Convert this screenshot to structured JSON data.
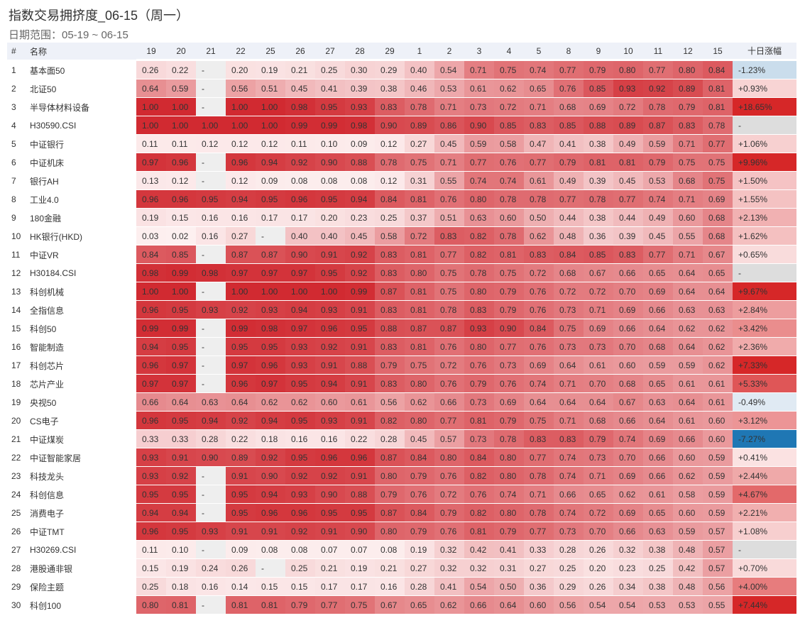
{
  "header": {
    "title": "指数交易拥挤度_06-15（周一）",
    "subtitle": "日期范围：05-19 ~ 06-15"
  },
  "table": {
    "columns": {
      "id": "#",
      "name": "名称",
      "dates": [
        "19",
        "20",
        "21",
        "22",
        "25",
        "26",
        "27",
        "28",
        "29",
        "1",
        "2",
        "3",
        "4",
        "5",
        "8",
        "9",
        "10",
        "11",
        "12",
        "15"
      ],
      "change": "十日涨幅"
    },
    "rows": [
      {
        "id": "1",
        "name": "基本面50",
        "values": [
          "0.26",
          "0.22",
          "-",
          "0.20",
          "0.19",
          "0.21",
          "0.25",
          "0.30",
          "0.29",
          "0.40",
          "0.54",
          "0.71",
          "0.75",
          "0.74",
          "0.77",
          "0.79",
          "0.80",
          "0.77",
          "0.80",
          "0.84"
        ],
        "change": "-1.23%"
      },
      {
        "id": "2",
        "name": "北证50",
        "values": [
          "0.64",
          "0.59",
          "-",
          "0.56",
          "0.51",
          "0.45",
          "0.41",
          "0.39",
          "0.38",
          "0.46",
          "0.53",
          "0.61",
          "0.62",
          "0.65",
          "0.76",
          "0.85",
          "0.93",
          "0.92",
          "0.89",
          "0.81"
        ],
        "change": "+0.93%"
      },
      {
        "id": "3",
        "name": "半导体材料设备",
        "values": [
          "1.00",
          "1.00",
          "-",
          "1.00",
          "1.00",
          "0.98",
          "0.95",
          "0.93",
          "0.83",
          "0.78",
          "0.71",
          "0.73",
          "0.72",
          "0.71",
          "0.68",
          "0.69",
          "0.72",
          "0.78",
          "0.79",
          "0.81"
        ],
        "change": "+18.65%"
      },
      {
        "id": "4",
        "name": "H30590.CSI",
        "values": [
          "1.00",
          "1.00",
          "1.00",
          "1.00",
          "1.00",
          "0.99",
          "0.99",
          "0.98",
          "0.90",
          "0.89",
          "0.86",
          "0.90",
          "0.85",
          "0.83",
          "0.85",
          "0.88",
          "0.89",
          "0.87",
          "0.83",
          "0.78"
        ],
        "change": "-"
      },
      {
        "id": "5",
        "name": "中证银行",
        "values": [
          "0.11",
          "0.11",
          "0.12",
          "0.12",
          "0.12",
          "0.11",
          "0.10",
          "0.09",
          "0.12",
          "0.27",
          "0.45",
          "0.59",
          "0.58",
          "0.47",
          "0.41",
          "0.38",
          "0.49",
          "0.59",
          "0.71",
          "0.77"
        ],
        "change": "+1.06%"
      },
      {
        "id": "6",
        "name": "中证机床",
        "values": [
          "0.97",
          "0.96",
          "-",
          "0.96",
          "0.94",
          "0.92",
          "0.90",
          "0.88",
          "0.78",
          "0.75",
          "0.71",
          "0.77",
          "0.76",
          "0.77",
          "0.79",
          "0.81",
          "0.81",
          "0.79",
          "0.75",
          "0.75"
        ],
        "change": "+9.96%"
      },
      {
        "id": "7",
        "name": "银行AH",
        "values": [
          "0.13",
          "0.12",
          "-",
          "0.12",
          "0.09",
          "0.08",
          "0.08",
          "0.08",
          "0.12",
          "0.31",
          "0.55",
          "0.74",
          "0.74",
          "0.61",
          "0.49",
          "0.39",
          "0.45",
          "0.53",
          "0.68",
          "0.75"
        ],
        "change": "+1.50%"
      },
      {
        "id": "8",
        "name": "工业4.0",
        "values": [
          "0.96",
          "0.96",
          "0.95",
          "0.94",
          "0.95",
          "0.96",
          "0.95",
          "0.94",
          "0.84",
          "0.81",
          "0.76",
          "0.80",
          "0.78",
          "0.78",
          "0.77",
          "0.78",
          "0.77",
          "0.74",
          "0.71",
          "0.69"
        ],
        "change": "+1.55%"
      },
      {
        "id": "9",
        "name": "180金融",
        "values": [
          "0.19",
          "0.15",
          "0.16",
          "0.16",
          "0.17",
          "0.17",
          "0.20",
          "0.23",
          "0.25",
          "0.37",
          "0.51",
          "0.63",
          "0.60",
          "0.50",
          "0.44",
          "0.38",
          "0.44",
          "0.49",
          "0.60",
          "0.68"
        ],
        "change": "+2.13%"
      },
      {
        "id": "10",
        "name": "HK银行(HKD)",
        "values": [
          "0.03",
          "0.02",
          "0.16",
          "0.27",
          "-",
          "0.40",
          "0.40",
          "0.45",
          "0.58",
          "0.72",
          "0.83",
          "0.82",
          "0.78",
          "0.62",
          "0.48",
          "0.36",
          "0.39",
          "0.45",
          "0.55",
          "0.68"
        ],
        "change": "+1.62%"
      },
      {
        "id": "11",
        "name": "中证VR",
        "values": [
          "0.84",
          "0.85",
          "-",
          "0.87",
          "0.87",
          "0.90",
          "0.91",
          "0.92",
          "0.83",
          "0.81",
          "0.77",
          "0.82",
          "0.81",
          "0.83",
          "0.84",
          "0.85",
          "0.83",
          "0.77",
          "0.71",
          "0.67"
        ],
        "change": "+0.65%"
      },
      {
        "id": "12",
        "name": "H30184.CSI",
        "values": [
          "0.98",
          "0.99",
          "0.98",
          "0.97",
          "0.97",
          "0.97",
          "0.95",
          "0.92",
          "0.83",
          "0.80",
          "0.75",
          "0.78",
          "0.75",
          "0.72",
          "0.68",
          "0.67",
          "0.66",
          "0.65",
          "0.64",
          "0.65"
        ],
        "change": "-"
      },
      {
        "id": "13",
        "name": "科创机械",
        "values": [
          "1.00",
          "1.00",
          "-",
          "1.00",
          "1.00",
          "1.00",
          "1.00",
          "0.99",
          "0.87",
          "0.81",
          "0.75",
          "0.80",
          "0.79",
          "0.76",
          "0.72",
          "0.72",
          "0.70",
          "0.69",
          "0.64",
          "0.64"
        ],
        "change": "+9.67%"
      },
      {
        "id": "14",
        "name": "全指信息",
        "values": [
          "0.96",
          "0.95",
          "0.93",
          "0.92",
          "0.93",
          "0.94",
          "0.93",
          "0.91",
          "0.83",
          "0.81",
          "0.78",
          "0.83",
          "0.79",
          "0.76",
          "0.73",
          "0.71",
          "0.69",
          "0.66",
          "0.63",
          "0.63"
        ],
        "change": "+2.84%"
      },
      {
        "id": "15",
        "name": "科创50",
        "values": [
          "0.99",
          "0.99",
          "-",
          "0.99",
          "0.98",
          "0.97",
          "0.96",
          "0.95",
          "0.88",
          "0.87",
          "0.87",
          "0.93",
          "0.90",
          "0.84",
          "0.75",
          "0.69",
          "0.66",
          "0.64",
          "0.62",
          "0.62"
        ],
        "change": "+3.42%"
      },
      {
        "id": "16",
        "name": "智能制造",
        "values": [
          "0.94",
          "0.95",
          "-",
          "0.95",
          "0.95",
          "0.93",
          "0.92",
          "0.91",
          "0.83",
          "0.81",
          "0.76",
          "0.80",
          "0.77",
          "0.76",
          "0.73",
          "0.73",
          "0.70",
          "0.68",
          "0.64",
          "0.62"
        ],
        "change": "+2.36%"
      },
      {
        "id": "17",
        "name": "科创芯片",
        "values": [
          "0.96",
          "0.97",
          "-",
          "0.97",
          "0.96",
          "0.93",
          "0.91",
          "0.88",
          "0.79",
          "0.75",
          "0.72",
          "0.76",
          "0.73",
          "0.69",
          "0.64",
          "0.61",
          "0.60",
          "0.59",
          "0.59",
          "0.62"
        ],
        "change": "+7.33%"
      },
      {
        "id": "18",
        "name": "芯片产业",
        "values": [
          "0.97",
          "0.97",
          "-",
          "0.96",
          "0.97",
          "0.95",
          "0.94",
          "0.91",
          "0.83",
          "0.80",
          "0.76",
          "0.79",
          "0.76",
          "0.74",
          "0.71",
          "0.70",
          "0.68",
          "0.65",
          "0.61",
          "0.61"
        ],
        "change": "+5.33%"
      },
      {
        "id": "19",
        "name": "央视50",
        "values": [
          "0.66",
          "0.64",
          "0.63",
          "0.64",
          "0.62",
          "0.62",
          "0.60",
          "0.61",
          "0.56",
          "0.62",
          "0.66",
          "0.73",
          "0.69",
          "0.64",
          "0.64",
          "0.64",
          "0.67",
          "0.63",
          "0.64",
          "0.61"
        ],
        "change": "-0.49%"
      },
      {
        "id": "20",
        "name": "CS电子",
        "values": [
          "0.96",
          "0.95",
          "0.94",
          "0.92",
          "0.94",
          "0.95",
          "0.93",
          "0.91",
          "0.82",
          "0.80",
          "0.77",
          "0.81",
          "0.79",
          "0.75",
          "0.71",
          "0.68",
          "0.66",
          "0.64",
          "0.61",
          "0.60"
        ],
        "change": "+3.12%"
      },
      {
        "id": "21",
        "name": "中证煤炭",
        "values": [
          "0.33",
          "0.33",
          "0.28",
          "0.22",
          "0.18",
          "0.16",
          "0.16",
          "0.22",
          "0.28",
          "0.45",
          "0.57",
          "0.73",
          "0.78",
          "0.83",
          "0.83",
          "0.79",
          "0.74",
          "0.69",
          "0.66",
          "0.60"
        ],
        "change": "-7.27%"
      },
      {
        "id": "22",
        "name": "中证智能家居",
        "values": [
          "0.93",
          "0.91",
          "0.90",
          "0.89",
          "0.92",
          "0.95",
          "0.96",
          "0.96",
          "0.87",
          "0.84",
          "0.80",
          "0.84",
          "0.80",
          "0.77",
          "0.74",
          "0.73",
          "0.70",
          "0.66",
          "0.60",
          "0.59"
        ],
        "change": "+0.41%"
      },
      {
        "id": "23",
        "name": "科技龙头",
        "values": [
          "0.93",
          "0.92",
          "-",
          "0.91",
          "0.90",
          "0.92",
          "0.92",
          "0.91",
          "0.80",
          "0.79",
          "0.76",
          "0.82",
          "0.80",
          "0.78",
          "0.74",
          "0.71",
          "0.69",
          "0.66",
          "0.62",
          "0.59"
        ],
        "change": "+2.44%"
      },
      {
        "id": "24",
        "name": "科创信息",
        "values": [
          "0.95",
          "0.95",
          "-",
          "0.95",
          "0.94",
          "0.93",
          "0.90",
          "0.88",
          "0.79",
          "0.76",
          "0.72",
          "0.76",
          "0.74",
          "0.71",
          "0.66",
          "0.65",
          "0.62",
          "0.61",
          "0.58",
          "0.59"
        ],
        "change": "+4.67%"
      },
      {
        "id": "25",
        "name": "消费电子",
        "values": [
          "0.94",
          "0.94",
          "-",
          "0.95",
          "0.96",
          "0.96",
          "0.95",
          "0.95",
          "0.87",
          "0.84",
          "0.79",
          "0.82",
          "0.80",
          "0.78",
          "0.74",
          "0.72",
          "0.69",
          "0.65",
          "0.60",
          "0.59"
        ],
        "change": "+2.21%"
      },
      {
        "id": "26",
        "name": "中证TMT",
        "values": [
          "0.96",
          "0.95",
          "0.93",
          "0.91",
          "0.91",
          "0.92",
          "0.91",
          "0.90",
          "0.80",
          "0.79",
          "0.76",
          "0.81",
          "0.79",
          "0.77",
          "0.73",
          "0.70",
          "0.66",
          "0.63",
          "0.59",
          "0.57"
        ],
        "change": "+1.08%"
      },
      {
        "id": "27",
        "name": "H30269.CSI",
        "values": [
          "0.11",
          "0.10",
          "-",
          "0.09",
          "0.08",
          "0.08",
          "0.07",
          "0.07",
          "0.08",
          "0.19",
          "0.32",
          "0.42",
          "0.41",
          "0.33",
          "0.28",
          "0.26",
          "0.32",
          "0.38",
          "0.48",
          "0.57"
        ],
        "change": "-"
      },
      {
        "id": "28",
        "name": "港股通非银",
        "values": [
          "0.15",
          "0.19",
          "0.24",
          "0.26",
          "-",
          "0.25",
          "0.21",
          "0.19",
          "0.21",
          "0.27",
          "0.32",
          "0.32",
          "0.31",
          "0.27",
          "0.25",
          "0.20",
          "0.23",
          "0.25",
          "0.42",
          "0.57"
        ],
        "change": "+0.70%"
      },
      {
        "id": "29",
        "name": "保险主题",
        "values": [
          "0.25",
          "0.18",
          "0.16",
          "0.14",
          "0.15",
          "0.15",
          "0.17",
          "0.17",
          "0.16",
          "0.28",
          "0.41",
          "0.54",
          "0.50",
          "0.36",
          "0.29",
          "0.26",
          "0.34",
          "0.38",
          "0.48",
          "0.56"
        ],
        "change": "+4.00%"
      },
      {
        "id": "30",
        "name": "科创100",
        "values": [
          "0.80",
          "0.81",
          "-",
          "0.81",
          "0.81",
          "0.79",
          "0.77",
          "0.75",
          "0.67",
          "0.65",
          "0.62",
          "0.66",
          "0.64",
          "0.60",
          "0.56",
          "0.54",
          "0.54",
          "0.53",
          "0.53",
          "0.55"
        ],
        "change": "+7.44%"
      }
    ]
  }
}
